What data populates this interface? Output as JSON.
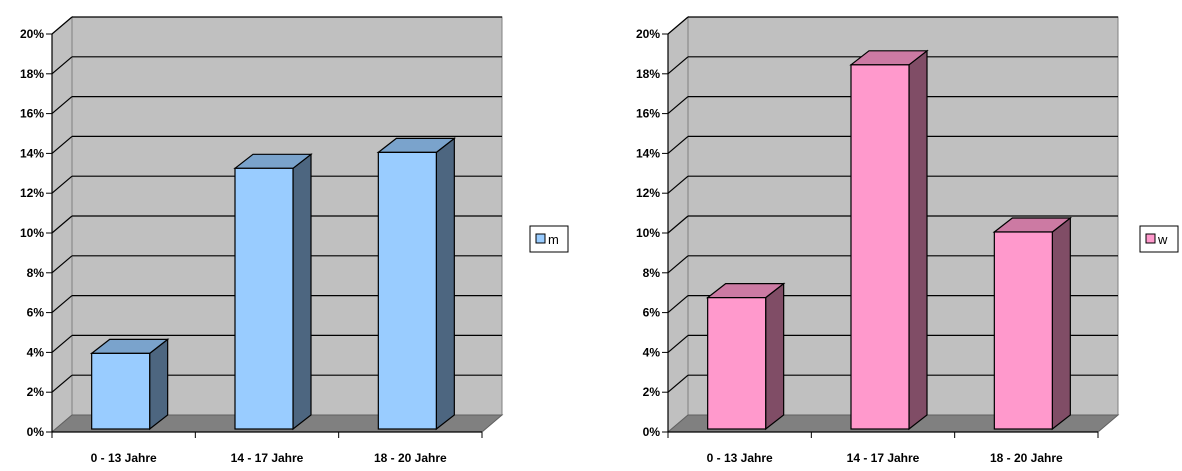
{
  "chart_data": [
    {
      "type": "bar",
      "categories": [
        "0 - 13 Jahre",
        "14 - 17 Jahre",
        "18 - 20 Jahre"
      ],
      "series": [
        {
          "name": "m",
          "values": [
            3.8,
            13.1,
            13.9
          ]
        }
      ],
      "ylim": [
        0,
        20
      ],
      "yticks": [
        "0%",
        "2%",
        "4%",
        "6%",
        "8%",
        "10%",
        "12%",
        "14%",
        "16%",
        "18%",
        "20%"
      ],
      "grid": true,
      "legend": "right",
      "colors": {
        "front": "#99ccff",
        "side": "#4d6680",
        "top": "#7aa3cc"
      }
    },
    {
      "type": "bar",
      "categories": [
        "0 - 13 Jahre",
        "14 - 17 Jahre",
        "18 - 20 Jahre"
      ],
      "series": [
        {
          "name": "w",
          "values": [
            6.6,
            18.3,
            9.9
          ]
        }
      ],
      "ylim": [
        0,
        20
      ],
      "yticks": [
        "0%",
        "2%",
        "4%",
        "6%",
        "8%",
        "10%",
        "12%",
        "14%",
        "16%",
        "18%",
        "20%"
      ],
      "grid": true,
      "legend": "right",
      "colors": {
        "front": "#ff99cc",
        "side": "#804d66",
        "top": "#cc7aa3"
      }
    }
  ]
}
